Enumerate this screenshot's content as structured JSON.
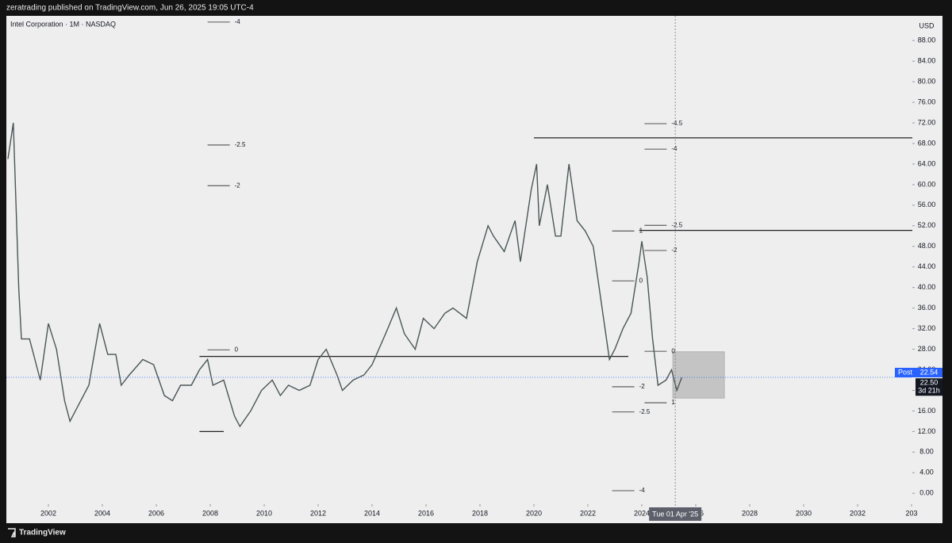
{
  "header": "zeratrading published on TradingView.com, Jun 26, 2025 19:05 UTC-4",
  "footer": "TradingView",
  "chart_data": {
    "type": "line",
    "title": "Intel Corporation · 1M · NASDAQ",
    "y_label": "USD",
    "color": "#4a5656",
    "x": [
      2000.5,
      2000.7,
      2000.9,
      2001.0,
      2001.3,
      2001.7,
      2002.0,
      2002.3,
      2002.6,
      2002.8,
      2003.0,
      2003.5,
      2003.9,
      2004.2,
      2004.5,
      2004.7,
      2005.0,
      2005.5,
      2005.9,
      2006.3,
      2006.6,
      2006.9,
      2007.3,
      2007.6,
      2007.9,
      2008.1,
      2008.5,
      2008.9,
      2009.1,
      2009.5,
      2009.9,
      2010.3,
      2010.6,
      2010.9,
      2011.3,
      2011.7,
      2012.0,
      2012.3,
      2012.7,
      2012.9,
      2013.3,
      2013.7,
      2014.0,
      2014.5,
      2014.9,
      2015.2,
      2015.6,
      2015.9,
      2016.3,
      2016.7,
      2017.0,
      2017.5,
      2017.9,
      2018.3,
      2018.5,
      2018.9,
      2019.3,
      2019.5,
      2019.9,
      2020.1,
      2020.2,
      2020.5,
      2020.8,
      2021.0,
      2021.3,
      2021.6,
      2021.9,
      2022.2,
      2022.5,
      2022.8,
      2023.0,
      2023.3,
      2023.6,
      2023.9,
      2024.0,
      2024.2,
      2024.4,
      2024.6,
      2024.9,
      2025.1,
      2025.3,
      2025.48
    ],
    "values": [
      65,
      72,
      40,
      30,
      30,
      22,
      33,
      28,
      18,
      14,
      16,
      21,
      33,
      27,
      27,
      21,
      23,
      26,
      25,
      19,
      18,
      21,
      21,
      24,
      26,
      21,
      22,
      15,
      13,
      16,
      20,
      22,
      19,
      21,
      20,
      21,
      26,
      28,
      23,
      20,
      22,
      23,
      25,
      31,
      36,
      31,
      28,
      34,
      32,
      35,
      36,
      34,
      45,
      52,
      50,
      47,
      53,
      45,
      59,
      64,
      52,
      60,
      50,
      50,
      64,
      53,
      51,
      48,
      37,
      26,
      28,
      32,
      35,
      45,
      49,
      42,
      30,
      21,
      22,
      24,
      20,
      22.5
    ],
    "xlim": [
      2000.44,
      2034.03
    ],
    "xticks": [
      2002,
      2004,
      2006,
      2008,
      2010,
      2012,
      2014,
      2016,
      2018,
      2020,
      2022,
      2024,
      2026,
      2028,
      2030,
      2032,
      {
        "value": 2034,
        "label": "203"
      }
    ],
    "ylim": [
      -1.5,
      92.5
    ],
    "yticks": [
      {
        "value": 0,
        "label": "0.00"
      },
      {
        "value": 4,
        "label": "4.00"
      },
      {
        "value": 8,
        "label": "8.00"
      },
      {
        "value": 12,
        "label": "12.00"
      },
      {
        "value": 16,
        "label": "16.00"
      },
      {
        "value": 20,
        "label": "20.00"
      },
      {
        "value": 24,
        "label": "24.00"
      },
      {
        "value": 28,
        "label": "28.00"
      },
      {
        "value": 32,
        "label": "32.00"
      },
      {
        "value": 36,
        "label": "36.00"
      },
      {
        "value": 40,
        "label": "40.00"
      },
      {
        "value": 44,
        "label": "44.00"
      },
      {
        "value": 48,
        "label": "48.00"
      },
      {
        "value": 52,
        "label": "52.00"
      },
      {
        "value": 56,
        "label": "56.00"
      },
      {
        "value": 60,
        "label": "60.00"
      },
      {
        "value": 64,
        "label": "64.00"
      },
      {
        "value": 68,
        "label": "68.00"
      },
      {
        "value": 72,
        "label": "72.00"
      },
      {
        "value": 76,
        "label": "76.00"
      },
      {
        "value": 80,
        "label": "80.00"
      },
      {
        "value": 84,
        "label": "84.00"
      },
      {
        "value": 88,
        "label": "88.00"
      }
    ],
    "levels": [
      {
        "label": "-4",
        "value": 91.6,
        "x": 2008.9
      },
      {
        "label": "-2.5",
        "value": 67.7,
        "x": 2008.9
      },
      {
        "label": "-2",
        "value": 59.8,
        "x": 2008.9
      },
      {
        "label": "0",
        "value": 27.9,
        "x": 2008.9
      },
      {
        "label": "-4.5",
        "value": 71.85,
        "x": 2025.1
      },
      {
        "label": "-4",
        "value": 66.9,
        "x": 2025.1
      },
      {
        "label": "-2.5",
        "value": 52.1,
        "x": 2025.1
      },
      {
        "label": "-2",
        "value": 47.2,
        "x": 2025.1
      },
      {
        "label": "0",
        "value": 27.6,
        "x": 2025.1
      },
      {
        "label": "1",
        "value": 17.6,
        "x": 2025.1
      },
      {
        "label": "1",
        "value": 51.0,
        "x": 2023.9
      },
      {
        "label": "0",
        "value": 41.3,
        "x": 2023.9
      },
      {
        "label": "-2",
        "value": 20.7,
        "x": 2023.9
      },
      {
        "label": "-2.5",
        "value": 15.8,
        "x": 2023.9
      },
      {
        "label": "-4",
        "value": 0.5,
        "x": 2023.9
      }
    ],
    "lines": [
      {
        "value": 69.1,
        "x": [
          2020.0,
          2034.03
        ]
      },
      {
        "value": 51.1,
        "x": [
          2023.9,
          2034.03
        ]
      },
      {
        "value": 26.6,
        "x": [
          2007.6,
          2023.5
        ]
      },
      {
        "value": 12.0,
        "x": [
          2007.6,
          2008.5
        ]
      }
    ],
    "zone": {
      "x": [
        2025.15,
        2027.06
      ],
      "y": [
        18.5,
        27.5
      ]
    },
    "crosshair": {
      "x": 2025.24,
      "label": "Tue 01 Apr '25"
    },
    "price_tags": [
      {
        "tag": "Post",
        "value": 22.54,
        "label": "22.54",
        "color": "#2962ff"
      },
      {
        "tag": "3d 21h",
        "value": 22.5,
        "label": "22.50",
        "color": "#131722"
      }
    ]
  }
}
